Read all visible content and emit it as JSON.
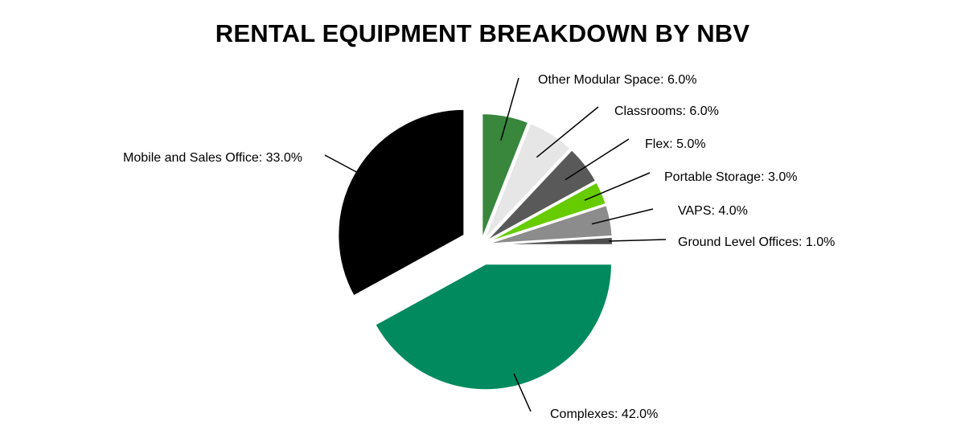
{
  "chart_data": {
    "type": "pie",
    "title": "RENTAL EQUIPMENT BREAKDOWN BY NBV",
    "slices": [
      {
        "name": "Ground Level Offices",
        "value": 1.0,
        "label": "Ground Level Offices: 1.0%",
        "color": "#4d4d4d"
      },
      {
        "name": "VAPS",
        "value": 4.0,
        "label": "VAPS: 4.0%",
        "color": "#8c8c8c"
      },
      {
        "name": "Portable Storage",
        "value": 3.0,
        "label": "Portable Storage: 3.0%",
        "color": "#66cc00"
      },
      {
        "name": "Flex",
        "value": 5.0,
        "label": "Flex: 5.0%",
        "color": "#595959"
      },
      {
        "name": "Classrooms",
        "value": 6.0,
        "label": "Classrooms: 6.0%",
        "color": "#e6e6e6"
      },
      {
        "name": "Other Modular Space",
        "value": 6.0,
        "label": "Other Modular Space: 6.0%",
        "color": "#38873d"
      },
      {
        "name": "Mobile and Sales Office",
        "value": 33.0,
        "label": "Mobile and Sales Office: 33.0%",
        "color": "#000000"
      },
      {
        "name": "Complexes",
        "value": 42.0,
        "label": "Complexes: 42.0%",
        "color": "#008a5e"
      }
    ]
  }
}
